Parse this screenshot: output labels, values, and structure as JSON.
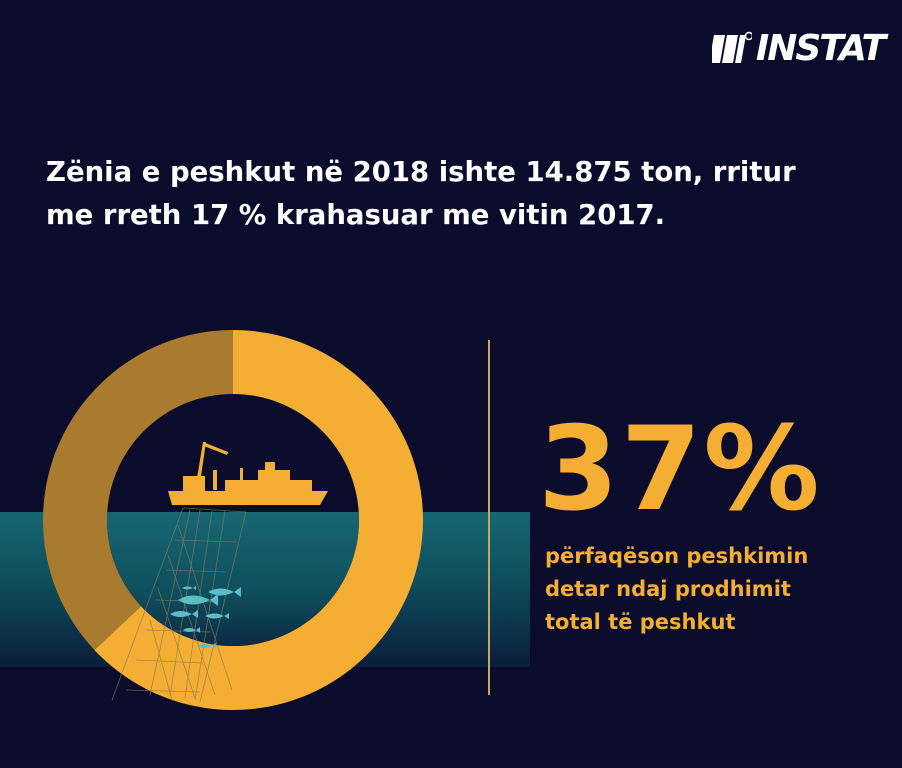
{
  "brand": {
    "name": "INSTAT"
  },
  "headline": {
    "line1": "Zënia e peshkut në 2018 ishte 14.875 ton, rritur",
    "line2": "me rreth 17 % krahasuar me  vitin 2017."
  },
  "stat": {
    "value": "37%",
    "desc_line1": "përfaqëson peshkimin",
    "desc_line2": "detar ndaj prodhimit",
    "desc_line3": "total të peshkut"
  },
  "colors": {
    "background": "#0b0c2c",
    "accent": "#f4ae33",
    "ring_remainder": "#a87b2e",
    "water": "#166773"
  },
  "chart_data": {
    "type": "pie",
    "style": "donut",
    "slices": [
      {
        "value": 37,
        "color": "#a87b2e"
      },
      {
        "value": 63,
        "color": "#f4ae33"
      }
    ]
  },
  "icons": [
    "fishing-boat-icon",
    "fishing-net-icon",
    "fish-icon"
  ]
}
